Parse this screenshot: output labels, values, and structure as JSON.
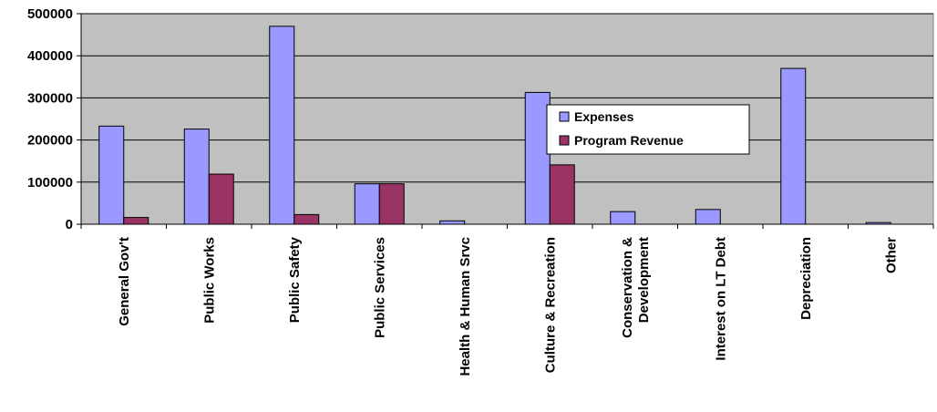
{
  "chart_data": {
    "type": "bar",
    "title": "",
    "xlabel": "",
    "ylabel": "",
    "ylim": [
      0,
      500000
    ],
    "yticks": [
      0,
      100000,
      200000,
      300000,
      400000,
      500000
    ],
    "ytick_labels": [
      "0",
      "100000",
      "200000",
      "300000",
      "400000",
      "500000"
    ],
    "grid": true,
    "legend_position": "center-right",
    "categories": [
      [
        "General Gov't"
      ],
      [
        "Public Works"
      ],
      [
        "Public Safety"
      ],
      [
        "Public Services"
      ],
      [
        "Health & Human Srvc"
      ],
      [
        "Culture & Recreation"
      ],
      [
        "Conservation &",
        "Development"
      ],
      [
        "Interest on LT Debt"
      ],
      [
        "Depreciation"
      ],
      [
        "Other"
      ]
    ],
    "series": [
      {
        "name": "Expenses",
        "color": "#9999ff",
        "values": [
          233000,
          226000,
          470000,
          96000,
          8000,
          313000,
          30000,
          35000,
          370000,
          4000
        ]
      },
      {
        "name": "Program Revenue",
        "color": "#993366",
        "values": [
          16000,
          119000,
          23000,
          96000,
          0,
          141000,
          0,
          0,
          0,
          0
        ]
      }
    ],
    "plot_background": "#c0c0c0"
  }
}
